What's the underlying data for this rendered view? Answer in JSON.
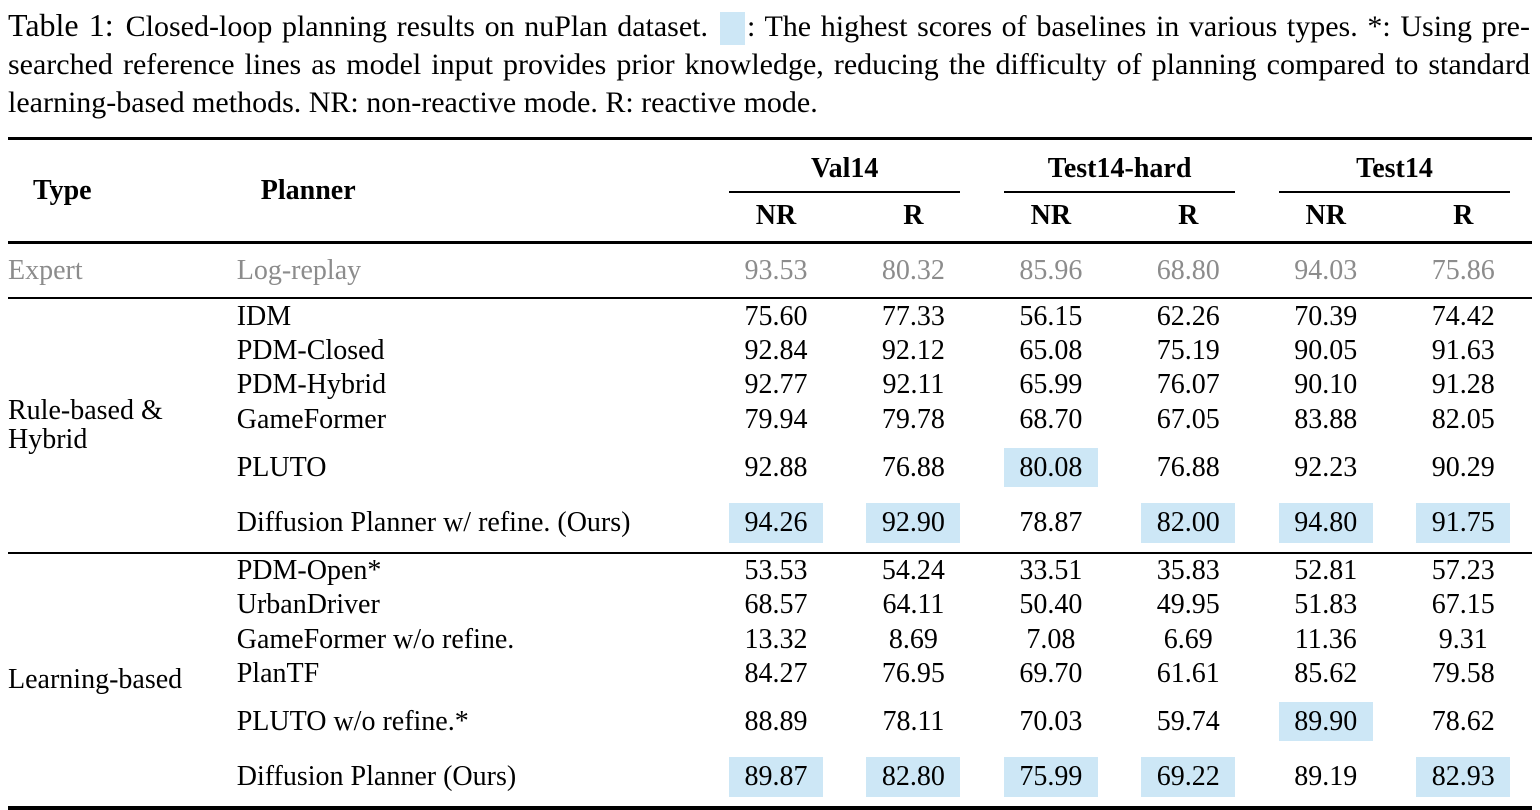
{
  "caption": {
    "label": "Table 1:",
    "before_legend": "Closed-loop planning results on nuPlan dataset.",
    "legend_symbol": "highlight-swatch",
    "after_legend": ": The highest scores of baselines in various types. *: Using pre-searched reference lines as model input provides prior knowledge, reducing the difficulty of planning compared to standard learning-based methods. NR: non-reactive mode. R: reactive mode."
  },
  "colors": {
    "highlight": "#cde7f6",
    "expert_text": "#8c8c8c"
  },
  "table": {
    "columns": {
      "type": "Type",
      "planner": "Planner"
    },
    "groups": [
      {
        "label": "Val14",
        "sub": [
          "NR",
          "R"
        ]
      },
      {
        "label": "Test14-hard",
        "sub": [
          "NR",
          "R"
        ]
      },
      {
        "label": "Test14",
        "sub": [
          "NR",
          "R"
        ]
      }
    ],
    "expert_row": {
      "type": "Expert",
      "planner": "Log-replay",
      "values": [
        "93.53",
        "80.32",
        "85.96",
        "68.80",
        "94.03",
        "75.86"
      ]
    },
    "sections": [
      {
        "type_label": "Rule-based & Hybrid",
        "rows": [
          {
            "planner": "IDM",
            "values": [
              "75.60",
              "77.33",
              "56.15",
              "62.26",
              "70.39",
              "74.42"
            ],
            "highlights": [
              false,
              false,
              false,
              false,
              false,
              false
            ]
          },
          {
            "planner": "PDM-Closed",
            "values": [
              "92.84",
              "92.12",
              "65.08",
              "75.19",
              "90.05",
              "91.63"
            ],
            "highlights": [
              false,
              false,
              false,
              false,
              false,
              false
            ]
          },
          {
            "planner": "PDM-Hybrid",
            "values": [
              "92.77",
              "92.11",
              "65.99",
              "76.07",
              "90.10",
              "91.28"
            ],
            "highlights": [
              false,
              false,
              false,
              false,
              false,
              false
            ]
          },
          {
            "planner": "GameFormer",
            "values": [
              "79.94",
              "79.78",
              "68.70",
              "67.05",
              "83.88",
              "82.05"
            ],
            "highlights": [
              false,
              false,
              false,
              false,
              false,
              false
            ]
          },
          {
            "planner": "PLUTO",
            "values": [
              "92.88",
              "76.88",
              "80.08",
              "76.88",
              "92.23",
              "90.29"
            ],
            "highlights": [
              false,
              false,
              true,
              false,
              false,
              false
            ]
          },
          {
            "planner": "Diffusion Planner w/ refine. (Ours)",
            "values": [
              "94.26",
              "92.90",
              "78.87",
              "82.00",
              "94.80",
              "91.75"
            ],
            "highlights": [
              true,
              true,
              false,
              true,
              true,
              true
            ]
          }
        ]
      },
      {
        "type_label": "Learning-based",
        "rows": [
          {
            "planner": "PDM-Open*",
            "values": [
              "53.53",
              "54.24",
              "33.51",
              "35.83",
              "52.81",
              "57.23"
            ],
            "highlights": [
              false,
              false,
              false,
              false,
              false,
              false
            ]
          },
          {
            "planner": "UrbanDriver",
            "values": [
              "68.57",
              "64.11",
              "50.40",
              "49.95",
              "51.83",
              "67.15"
            ],
            "highlights": [
              false,
              false,
              false,
              false,
              false,
              false
            ]
          },
          {
            "planner": "GameFormer w/o refine.",
            "values": [
              "13.32",
              "8.69",
              "7.08",
              "6.69",
              "11.36",
              "9.31"
            ],
            "highlights": [
              false,
              false,
              false,
              false,
              false,
              false
            ]
          },
          {
            "planner": "PlanTF",
            "values": [
              "84.27",
              "76.95",
              "69.70",
              "61.61",
              "85.62",
              "79.58"
            ],
            "highlights": [
              false,
              false,
              false,
              false,
              false,
              false
            ]
          },
          {
            "planner": "PLUTO w/o refine.*",
            "values": [
              "88.89",
              "78.11",
              "70.03",
              "59.74",
              "89.90",
              "78.62"
            ],
            "highlights": [
              false,
              false,
              false,
              false,
              true,
              false
            ]
          },
          {
            "planner": "Diffusion Planner (Ours)",
            "values": [
              "89.87",
              "82.80",
              "75.99",
              "69.22",
              "89.19",
              "82.93"
            ],
            "highlights": [
              true,
              true,
              true,
              true,
              false,
              true
            ]
          }
        ]
      }
    ]
  }
}
